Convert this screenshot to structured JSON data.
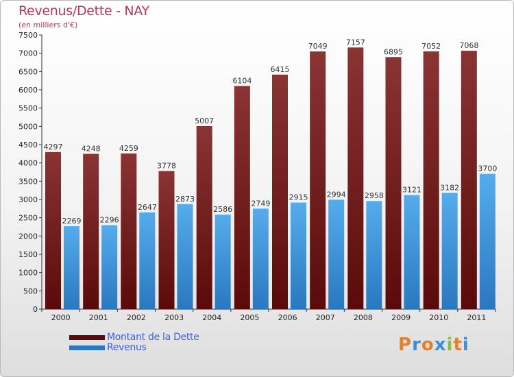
{
  "title": "Revenus/Dette - NAY",
  "subtitle": "(en milliers d'€)",
  "brand": "Proxiti",
  "brand_letters": [
    {
      "ch": "P",
      "color": "#e3802b"
    },
    {
      "ch": "r",
      "color": "#3a8fd6"
    },
    {
      "ch": "o",
      "color": "#e3802b"
    },
    {
      "ch": "x",
      "color": "#3a8fd6"
    },
    {
      "ch": "i",
      "color": "#8cbf3f"
    },
    {
      "ch": "t",
      "color": "#e3802b"
    },
    {
      "ch": "i",
      "color": "#3a8fd6"
    }
  ],
  "colors": {
    "dette_top": "#8a3434",
    "dette_bottom": "#5a0a0a",
    "revenus_top": "#55acec",
    "revenus_bottom": "#2a78c0",
    "title": "#b23a5c",
    "legend_text": "#3f5ee0"
  },
  "chart_data": {
    "type": "bar",
    "title": "Revenus/Dette - NAY",
    "subtitle": "(en milliers d'€)",
    "categories": [
      "2000",
      "2001",
      "2002",
      "2003",
      "2004",
      "2005",
      "2006",
      "2007",
      "2008",
      "2009",
      "2010",
      "2011"
    ],
    "series": [
      {
        "name": "Montant de la Dette",
        "values": [
          4297,
          4248,
          4259,
          3778,
          5007,
          6104,
          6415,
          7049,
          7157,
          6895,
          7052,
          7068
        ]
      },
      {
        "name": "Revenus",
        "values": [
          2269,
          2296,
          2647,
          2873,
          2586,
          2749,
          2915,
          2994,
          2958,
          3121,
          3182,
          3700
        ]
      }
    ],
    "yticks": [
      0,
      500,
      1000,
      1500,
      2000,
      2500,
      3000,
      3500,
      4000,
      4500,
      5000,
      5500,
      6000,
      6500,
      7000,
      7500
    ],
    "ylim": [
      0,
      7500
    ],
    "grid": false,
    "legend_position": "bottom-left"
  }
}
